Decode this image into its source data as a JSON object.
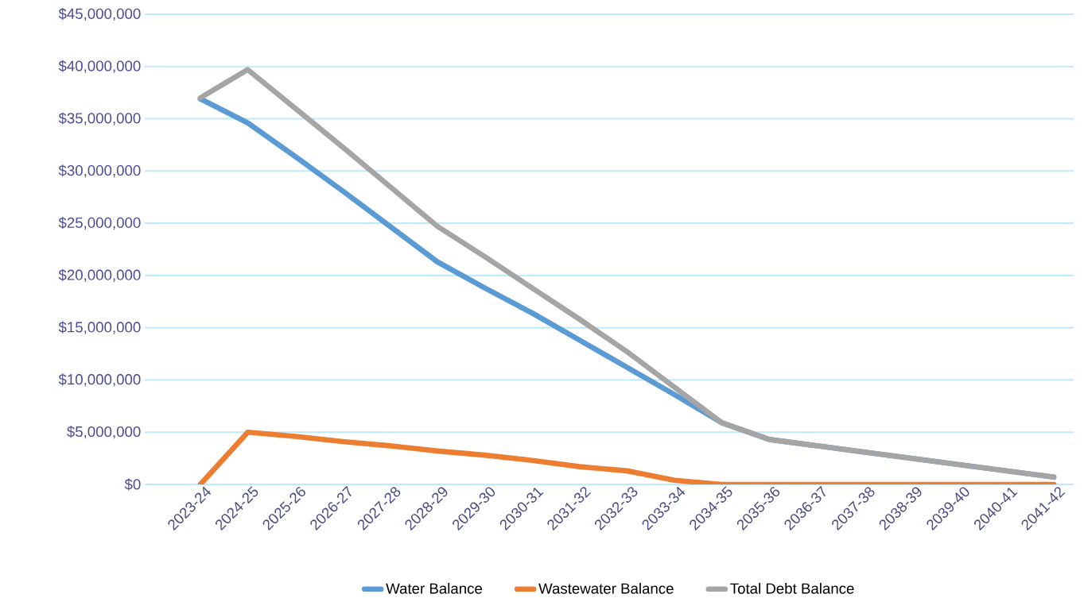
{
  "chart_data": {
    "type": "line",
    "categories": [
      "2023-24",
      "2024-25",
      "2025-26",
      "2026-27",
      "2027-28",
      "2028-29",
      "2029-30",
      "2030-31",
      "2031-32",
      "2032-33",
      "2033-34",
      "2034-35",
      "2035-36",
      "2036-37",
      "2037-38",
      "2038-39",
      "2039-40",
      "2040-41",
      "2041-42"
    ],
    "series": [
      {
        "name": "Water Balance",
        "color": "#5b9bd5",
        "values": [
          36900000,
          34600000,
          31400000,
          28100000,
          24700000,
          21300000,
          18800000,
          16400000,
          13800000,
          11200000,
          8600000,
          5900000,
          4300000,
          3700000,
          3100000,
          2500000,
          1900000,
          1300000,
          700000
        ]
      },
      {
        "name": "Wastewater Balance",
        "color": "#ed7d31",
        "values": [
          0,
          5000000,
          4600000,
          4100000,
          3700000,
          3200000,
          2800000,
          2300000,
          1700000,
          1300000,
          400000,
          0,
          0,
          0,
          0,
          0,
          0,
          0,
          0
        ]
      },
      {
        "name": "Total Debt Balance",
        "color": "#a5a5a5",
        "values": [
          37000000,
          39700000,
          36000000,
          32300000,
          28500000,
          24700000,
          21800000,
          18800000,
          15800000,
          12700000,
          9300000,
          5900000,
          4300000,
          3700000,
          3100000,
          2500000,
          1900000,
          1300000,
          700000
        ]
      }
    ],
    "ylim": [
      0,
      45000000
    ],
    "yticks": [
      {
        "value": 0,
        "label": "$0"
      },
      {
        "value": 5000000,
        "label": "$5,000,000"
      },
      {
        "value": 10000000,
        "label": "$10,000,000"
      },
      {
        "value": 15000000,
        "label": "$15,000,000"
      },
      {
        "value": 20000000,
        "label": "$20,000,000"
      },
      {
        "value": 25000000,
        "label": "$25,000,000"
      },
      {
        "value": 30000000,
        "label": "$30,000,000"
      },
      {
        "value": 35000000,
        "label": "$35,000,000"
      },
      {
        "value": 40000000,
        "label": "$40,000,000"
      },
      {
        "value": 45000000,
        "label": "$45,000,000"
      }
    ],
    "grid": "y",
    "legend": "bottom",
    "marker": "none",
    "line_style": "solid"
  }
}
